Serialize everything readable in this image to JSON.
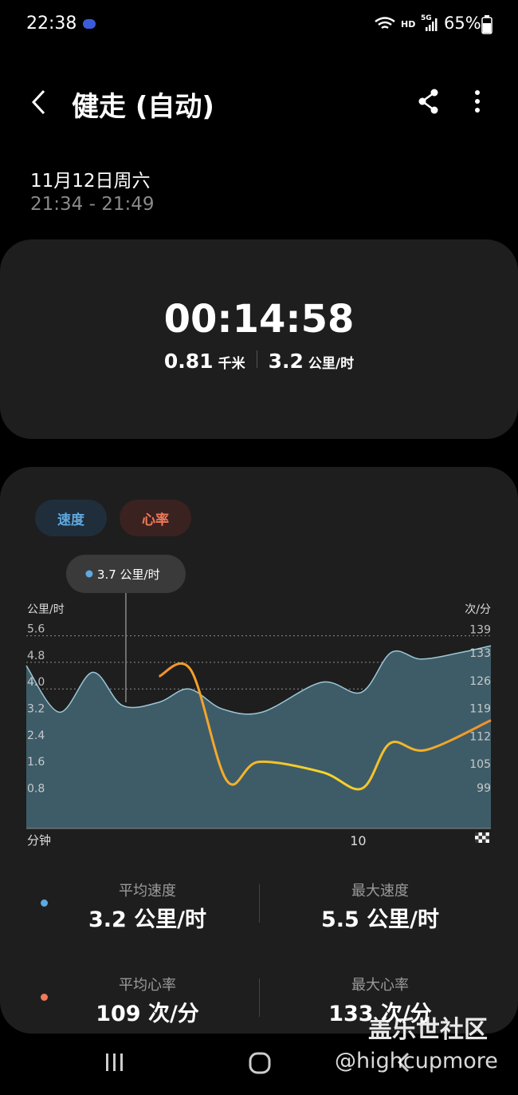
{
  "status_bar": {
    "time": "22:38",
    "network": "HD",
    "signal": "5G",
    "battery": "65%"
  },
  "header": {
    "title": "健走 (自动)"
  },
  "session": {
    "date": "11月12日周六",
    "time_range": "21:34 - 21:49"
  },
  "summary": {
    "duration": "00:14:58",
    "distance": "0.81",
    "distance_unit": "千米",
    "speed": "3.2",
    "speed_unit": "公里/时"
  },
  "chart_data": {
    "type": "area_line",
    "y_label": "公里/时",
    "y2_label": "次/分",
    "x_label": "分钟",
    "xlim": [
      0,
      14
    ],
    "xticks": [
      10
    ],
    "ylim": [
      -0.2,
      6
    ],
    "yticks": [
      0.8,
      1.6,
      2.4,
      3.2,
      {
        "value": 4,
        "label": "4.0"
      },
      4.8,
      5.6
    ],
    "y2lim": [
      90.5,
      142.5
    ],
    "y2ticks": [
      99,
      105,
      112,
      119,
      126,
      133,
      139
    ],
    "grid": true,
    "tooltip": {
      "x": 3,
      "label": "3.7 公里/时"
    },
    "series": [
      {
        "name": "速度",
        "color": "#5fa8e0",
        "fill": "#3e5c67",
        "line_color": "#9cc7d6",
        "axis": "y",
        "x": [
          0,
          1,
          2,
          2.9,
          4,
          4.9,
          5.9,
          7.1,
          8.9,
          10.1,
          11,
          11.9,
          13.1,
          14
        ],
        "values": [
          4.7,
          3.3,
          4.5,
          3.5,
          3.6,
          4.0,
          3.4,
          3.3,
          4.2,
          3.9,
          5.1,
          4.9,
          5.1,
          5.3
        ]
      },
      {
        "name": "心率",
        "color": "#f07a5a",
        "line_color": "#f2c12c",
        "axis": "y2",
        "x": [
          4,
          4.96,
          6.04,
          7,
          8.92,
          10.12,
          10.96,
          12.04,
          14
        ],
        "values": [
          128.9,
          130.5,
          102.6,
          107.3,
          104.7,
          100.6,
          112,
          110.3,
          117.8
        ]
      }
    ]
  },
  "stats": [
    {
      "label": "平均速度",
      "value": "3.2 公里/时"
    },
    {
      "label": "最大速度",
      "value": "5.5 公里/时"
    },
    {
      "label": "平均心率",
      "value": "109 次/分"
    },
    {
      "label": "最大心率",
      "value": "133 次/分"
    }
  ],
  "watermark": {
    "site": "盖乐世社区",
    "handle": "@highcupmore"
  }
}
